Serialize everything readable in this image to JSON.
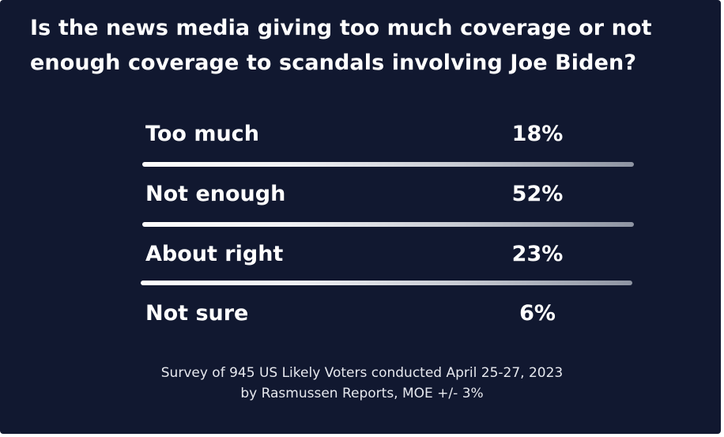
{
  "chart_data": {
    "type": "table",
    "title": [
      "Is the news media giving too much coverage or not",
      "enough coverage to scandals involving Joe Biden?"
    ],
    "rows": [
      {
        "label": "Too much",
        "value": 18,
        "display": "18%"
      },
      {
        "label": "Not enough",
        "value": 52,
        "display": "52%"
      },
      {
        "label": "About right",
        "value": 23,
        "display": "23%"
      },
      {
        "label": "Not sure",
        "value": 6,
        "display": "6%"
      }
    ],
    "source": [
      "Survey of 945 US Likely Voters conducted April 25-27, 2023",
      "by Rasmussen Reports, MOE +/- 3%"
    ],
    "colors": {
      "background": "#111830",
      "text": "#ffffff",
      "divider_start": "#ffffff",
      "divider_end": "#8e94a2"
    }
  }
}
